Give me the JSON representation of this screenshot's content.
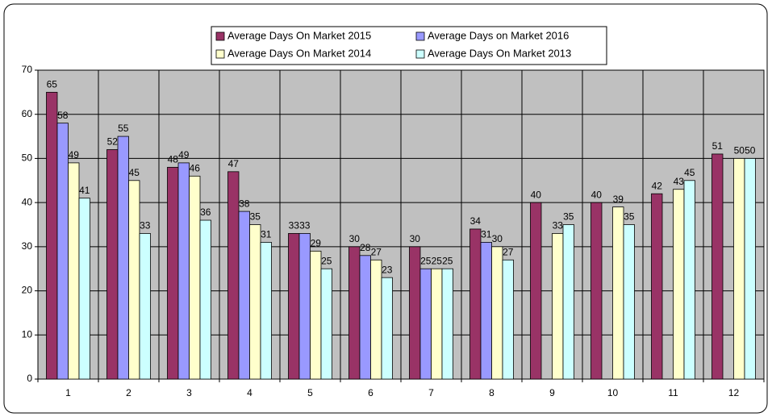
{
  "chart_data": {
    "type": "bar",
    "categories": [
      "1",
      "2",
      "3",
      "4",
      "5",
      "6",
      "7",
      "8",
      "9",
      "10",
      "11",
      "12"
    ],
    "series": [
      {
        "name": "Average Days On Market 2015",
        "color": "#993366",
        "values": [
          65,
          52,
          48,
          47,
          33,
          30,
          30,
          34,
          40,
          40,
          42,
          51
        ]
      },
      {
        "name": "Average Days on Market 2016",
        "color": "#9999ff",
        "values": [
          58,
          55,
          49,
          38,
          33,
          28,
          25,
          31,
          null,
          null,
          null,
          null
        ]
      },
      {
        "name": "Average Days On Market 2014",
        "color": "#ffffcc",
        "values": [
          49,
          45,
          46,
          35,
          29,
          27,
          25,
          30,
          33,
          39,
          43,
          50
        ]
      },
      {
        "name": "Average Days On Market 2013",
        "color": "#ccffff",
        "values": [
          41,
          33,
          36,
          31,
          25,
          23,
          25,
          27,
          35,
          35,
          45,
          50
        ]
      }
    ],
    "ylim": [
      0,
      70
    ],
    "yticks": [
      0,
      10,
      20,
      30,
      40,
      50,
      60,
      70
    ],
    "grid": true,
    "legend": "top",
    "plot_background": "#c0c0c0"
  }
}
